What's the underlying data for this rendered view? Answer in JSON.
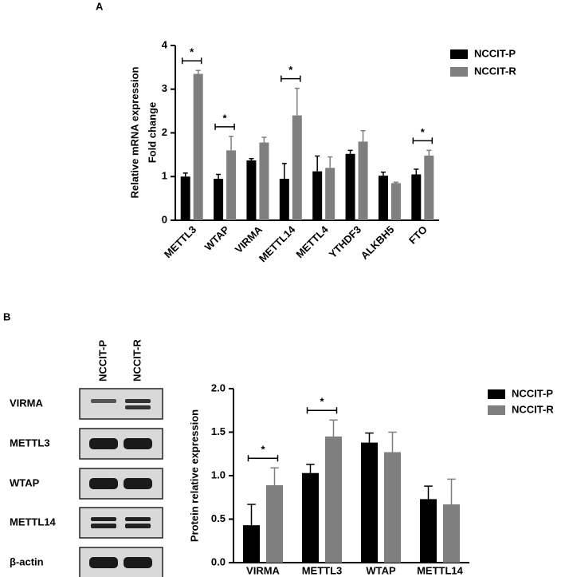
{
  "chart_data": [
    {
      "type": "bar",
      "panel": "A",
      "y_label": [
        "Relative mRNA expression",
        "Fold change"
      ],
      "categories": [
        "METTL3",
        "WTAP",
        "VIRMA",
        "METTL14",
        "METTL4",
        "YTHDF3",
        "ALKBH5",
        "FTO"
      ],
      "series": [
        {
          "name": "NCCIT-P",
          "color": "#000000",
          "values": [
            1.0,
            0.95,
            1.37,
            0.95,
            1.12,
            1.52,
            1.02,
            1.05
          ],
          "errors": [
            0.08,
            0.1,
            0.04,
            0.35,
            0.35,
            0.08,
            0.08,
            0.12
          ]
        },
        {
          "name": "NCCIT-R",
          "color": "#7f7f7f",
          "values": [
            3.35,
            1.6,
            1.78,
            2.4,
            1.2,
            1.8,
            0.85,
            1.48
          ],
          "errors": [
            0.08,
            0.32,
            0.12,
            0.62,
            0.25,
            0.25,
            0.02,
            0.12
          ]
        }
      ],
      "significance": [
        "*",
        "*",
        null,
        "*",
        null,
        null,
        null,
        "*"
      ],
      "ylim": [
        0,
        4
      ],
      "yticks": [
        0,
        1,
        2,
        3,
        4
      ]
    },
    {
      "type": "bar",
      "panel": "B",
      "y_label": [
        "Protein relative expression"
      ],
      "categories": [
        "VIRMA",
        "METTL3",
        "WTAP",
        "METTL14"
      ],
      "series": [
        {
          "name": "NCCIT-P",
          "color": "#000000",
          "values": [
            0.43,
            1.03,
            1.38,
            0.73
          ],
          "errors": [
            0.24,
            0.1,
            0.11,
            0.15
          ]
        },
        {
          "name": "NCCIT-R",
          "color": "#7f7f7f",
          "values": [
            0.89,
            1.45,
            1.27,
            0.67
          ],
          "errors": [
            0.2,
            0.19,
            0.23,
            0.29
          ]
        }
      ],
      "significance": [
        "*",
        "*",
        null,
        null
      ],
      "ylim": [
        0,
        2
      ],
      "yticks": [
        {
          "value": 0,
          "label": "0.0"
        },
        {
          "value": 0.5,
          "label": "0.5"
        },
        {
          "value": 1,
          "label": "1.0"
        },
        {
          "value": 1.5,
          "label": "1.5"
        },
        {
          "value": 2,
          "label": "2.0"
        }
      ]
    }
  ],
  "blot": {
    "columns": [
      "NCCIT-P",
      "NCCIT-R"
    ],
    "rows": [
      "VIRMA",
      "METTL3",
      "WTAP",
      "METTL14",
      "β-actin"
    ]
  }
}
